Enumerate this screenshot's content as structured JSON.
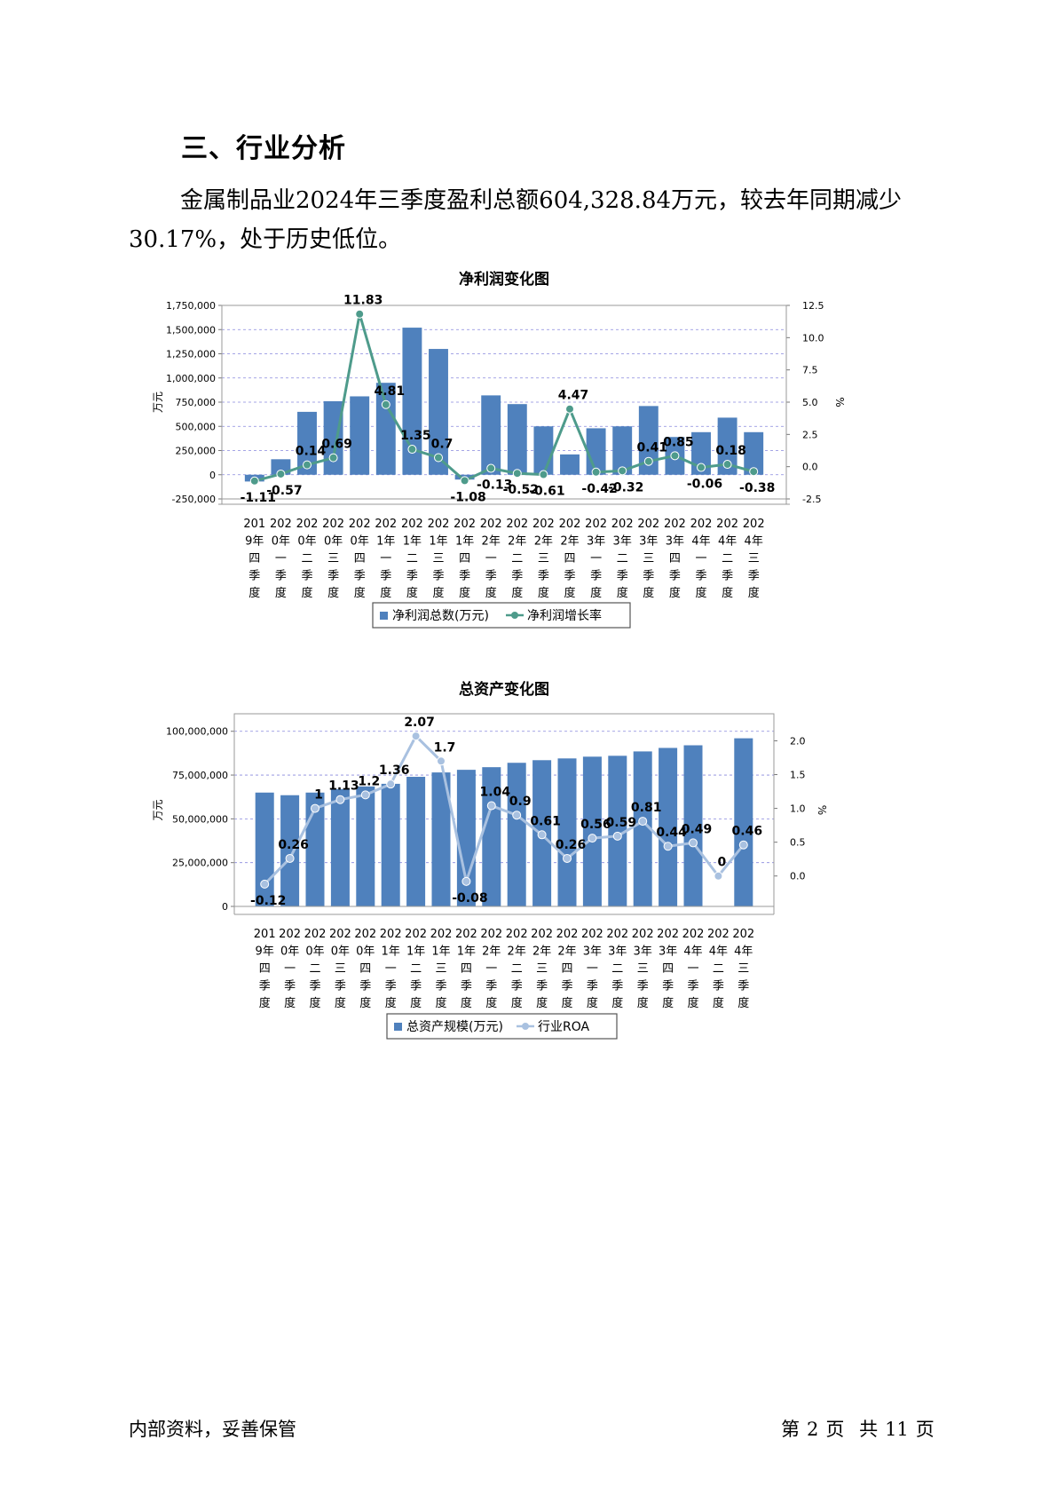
{
  "section": {
    "heading": "三、行业分析",
    "paragraph_line1": "金属制品业2024年三季度盈利总额604,328.84万元，较去年同期减少",
    "paragraph_line2": "30.17%，处于历史低位。"
  },
  "footer": {
    "left": "内部资料，妥善保管",
    "page_label_prefix": "第",
    "page_number": "2",
    "page_label_suffix": "页",
    "total_prefix": "共",
    "total_pages": "11",
    "total_suffix": "页"
  },
  "colors": {
    "bar": "#4f81bd",
    "line1": "#4e9b8b",
    "line2": "#a9c1e0",
    "grid": "#8888dd"
  },
  "chart_data": [
    {
      "type": "bar",
      "title": "净利润变化图",
      "ylabel": "万元",
      "y2label": "%",
      "ylim": [
        -250000,
        1750000
      ],
      "y2lim": [
        -2.5,
        12.5
      ],
      "yticks": [
        "-250,000",
        "0",
        "250,000",
        "500,000",
        "750,000",
        "1,000,000",
        "1,250,000",
        "1,500,000",
        "1,750,000"
      ],
      "y2ticks": [
        "-2.5",
        "0.0",
        "2.5",
        "5.0",
        "7.5",
        "10.0",
        "12.5"
      ],
      "categories": [
        [
          "201",
          "9年",
          "四",
          "季",
          "度"
        ],
        [
          "202",
          "0年",
          "一",
          "季",
          "度"
        ],
        [
          "202",
          "0年",
          "二",
          "季",
          "度"
        ],
        [
          "202",
          "0年",
          "三",
          "季",
          "度"
        ],
        [
          "202",
          "0年",
          "四",
          "季",
          "度"
        ],
        [
          "202",
          "1年",
          "一",
          "季",
          "度"
        ],
        [
          "202",
          "1年",
          "二",
          "季",
          "度"
        ],
        [
          "202",
          "1年",
          "三",
          "季",
          "度"
        ],
        [
          "202",
          "1年",
          "四",
          "季",
          "度"
        ],
        [
          "202",
          "2年",
          "一",
          "季",
          "度"
        ],
        [
          "202",
          "2年",
          "二",
          "季",
          "度"
        ],
        [
          "202",
          "2年",
          "三",
          "季",
          "度"
        ],
        [
          "202",
          "2年",
          "四",
          "季",
          "度"
        ],
        [
          "202",
          "3年",
          "一",
          "季",
          "度"
        ],
        [
          "202",
          "3年",
          "二",
          "季",
          "度"
        ],
        [
          "202",
          "3年",
          "三",
          "季",
          "度"
        ],
        [
          "202",
          "3年",
          "四",
          "季",
          "度"
        ],
        [
          "202",
          "4年",
          "一",
          "季",
          "度"
        ],
        [
          "202",
          "4年",
          "二",
          "季",
          "度"
        ],
        [
          "202",
          "4年",
          "三",
          "季",
          "度"
        ]
      ],
      "series": [
        {
          "name": "净利润总数(万元)",
          "kind": "bar",
          "values": [
            -70000,
            160000,
            650000,
            760000,
            810000,
            950000,
            1520000,
            1300000,
            -50000,
            820000,
            730000,
            500000,
            210000,
            480000,
            500000,
            710000,
            390000,
            440000,
            590000,
            440000
          ]
        },
        {
          "name": "净利润增长率",
          "kind": "line",
          "axis": "y2",
          "values": [
            -1.11,
            -0.57,
            0.14,
            0.69,
            11.83,
            4.81,
            1.35,
            0.7,
            -1.08,
            -0.13,
            -0.52,
            -0.61,
            4.47,
            -0.42,
            -0.32,
            0.41,
            0.85,
            -0.06,
            0.18,
            -0.38
          ],
          "labels": [
            "-1.11",
            "-0.57",
            "0.14",
            "0.69",
            "11.83",
            "4.81",
            "1.35",
            "0.7",
            "-1.08",
            "-0.13",
            "-0.52",
            "-0.61",
            "4.47",
            "-0.42",
            "-0.32",
            "0.41",
            "0.85",
            "-0.06",
            "0.18",
            "-0.38"
          ]
        }
      ],
      "legend": "bottom"
    },
    {
      "type": "bar",
      "title": "总资产变化图",
      "ylabel": "万元",
      "y2label": "%",
      "ylim": [
        0,
        110000000
      ],
      "y2lim": [
        -0.45,
        2.4
      ],
      "yticks": [
        "0",
        "25,000,000",
        "50,000,000",
        "75,000,000",
        "100,000,000"
      ],
      "y2ticks": [
        "0.0",
        "0.5",
        "1.0",
        "1.5",
        "2.0"
      ],
      "categories": [
        [
          "201",
          "9年",
          "四",
          "季",
          "度"
        ],
        [
          "202",
          "0年",
          "一",
          "季",
          "度"
        ],
        [
          "202",
          "0年",
          "二",
          "季",
          "度"
        ],
        [
          "202",
          "0年",
          "三",
          "季",
          "度"
        ],
        [
          "202",
          "0年",
          "四",
          "季",
          "度"
        ],
        [
          "202",
          "1年",
          "一",
          "季",
          "度"
        ],
        [
          "202",
          "1年",
          "二",
          "季",
          "度"
        ],
        [
          "202",
          "1年",
          "三",
          "季",
          "度"
        ],
        [
          "202",
          "1年",
          "四",
          "季",
          "度"
        ],
        [
          "202",
          "2年",
          "一",
          "季",
          "度"
        ],
        [
          "202",
          "2年",
          "二",
          "季",
          "度"
        ],
        [
          "202",
          "2年",
          "三",
          "季",
          "度"
        ],
        [
          "202",
          "2年",
          "四",
          "季",
          "度"
        ],
        [
          "202",
          "3年",
          "一",
          "季",
          "度"
        ],
        [
          "202",
          "3年",
          "二",
          "季",
          "度"
        ],
        [
          "202",
          "3年",
          "三",
          "季",
          "度"
        ],
        [
          "202",
          "3年",
          "四",
          "季",
          "度"
        ],
        [
          "202",
          "4年",
          "一",
          "季",
          "度"
        ],
        [
          "202",
          "4年",
          "二",
          "季",
          "度"
        ],
        [
          "202",
          "4年",
          "三",
          "季",
          "度"
        ]
      ],
      "series": [
        {
          "name": "总资产规模(万元)",
          "kind": "bar",
          "values": [
            65000000,
            63500000,
            65000000,
            67000000,
            68500000,
            70000000,
            74000000,
            76500000,
            78000000,
            79500000,
            82000000,
            83500000,
            84500000,
            85500000,
            86000000,
            88500000,
            90500000,
            92000000,
            null,
            96000000
          ]
        },
        {
          "name": "行业ROA",
          "kind": "line",
          "axis": "y2",
          "values": [
            -0.12,
            0.26,
            1,
            1.13,
            1.2,
            1.36,
            2.07,
            1.7,
            -0.08,
            1.04,
            0.9,
            0.61,
            0.26,
            0.56,
            0.59,
            0.81,
            0.44,
            0.49,
            0,
            0.46
          ],
          "labels": [
            "-0.12",
            "0.26",
            "1",
            "1.13",
            "1.2",
            "1.36",
            "2.07",
            "1.7",
            "-0.08",
            "1.04",
            "0.9",
            "0.61",
            "0.26",
            "0.56",
            "0.59",
            "0.81",
            "0.44",
            "0.49",
            "0",
            "0.46"
          ]
        }
      ],
      "legend": "bottom"
    }
  ]
}
